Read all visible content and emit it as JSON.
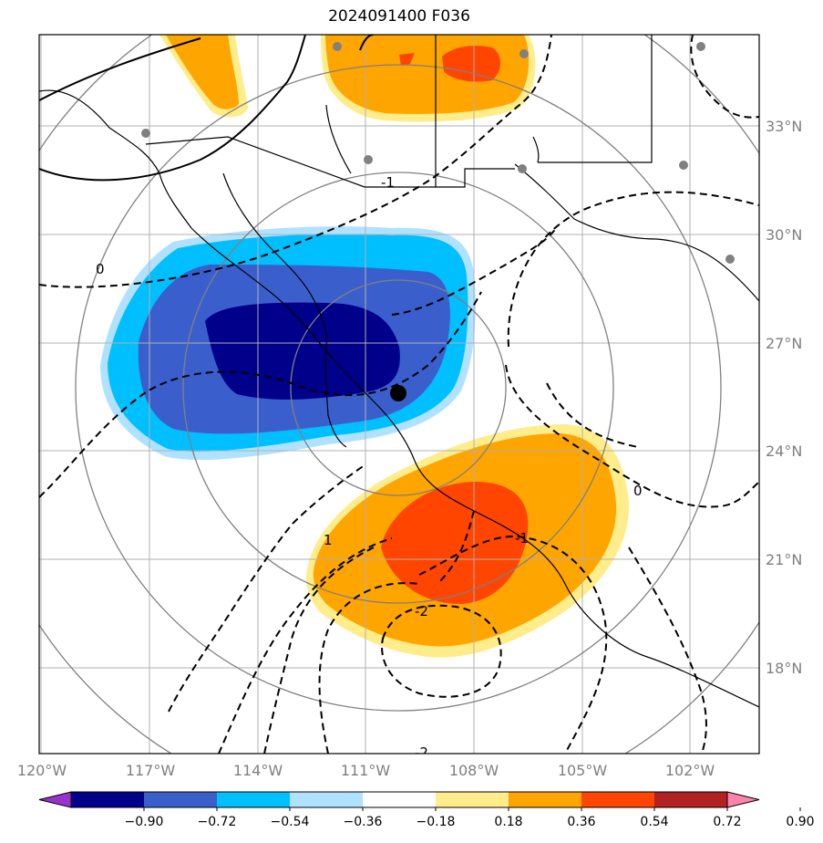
{
  "title": "2024091400 F036",
  "map": {
    "projection": "lat-lon",
    "lon_range": [
      -120,
      -100
    ],
    "lat_range": [
      15,
      35
    ],
    "lon_ticks": [
      "120°W",
      "117°W",
      "114°W",
      "111°W",
      "108°W",
      "105°W",
      "102°W"
    ],
    "lat_ticks": [
      "33°N",
      "30°N",
      "27°N",
      "24°N",
      "21°N",
      "18°N"
    ],
    "gridlines": true,
    "center_marker": {
      "lon": -110.0,
      "lat": 25.5,
      "color": "#000000"
    },
    "range_rings": 4,
    "station_dots_color": "#808080"
  },
  "contours": {
    "style": "dashed-negative/solid",
    "labels": [
      "-1",
      "0",
      "0",
      "1",
      "-1",
      "-2",
      "-2"
    ]
  },
  "colorbar": {
    "ticks": [
      "−0.90",
      "−0.72",
      "−0.54",
      "−0.36",
      "−0.18",
      "0.18",
      "0.36",
      "0.54",
      "0.72",
      "0.90"
    ],
    "colors": [
      "#9932cc",
      "#00008b",
      "#3a5fcd",
      "#00bfff",
      "#b0e2ff",
      "#ffffff",
      "#ffec8b",
      "#ffa500",
      "#ff4500",
      "#b22222",
      "#ff82ab"
    ],
    "extend": "both"
  }
}
